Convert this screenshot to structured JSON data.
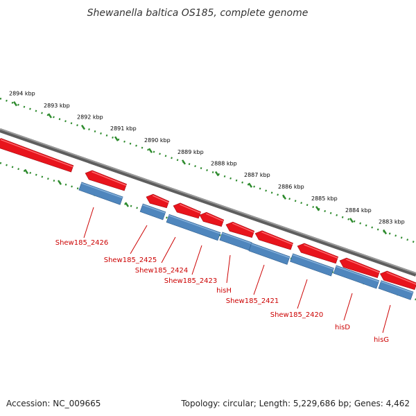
{
  "title": "Shewanella baltica OS185, complete genome",
  "footer": {
    "accession": "Accession: NC_009665",
    "topology": "Topology: circular; Length: 5,229,686 bp; Genes: 4,462"
  },
  "colors": {
    "backbone": "#808080",
    "forward_gene": "#e8141c",
    "reverse_gene": "#4f86bd",
    "ruler": "#2e8b2e",
    "label": "#cc0000"
  },
  "scale_labels": [
    "2894 kbp",
    "2893 kbp",
    "2892 kbp",
    "2891 kbp",
    "2890 kbp",
    "2889 kbp",
    "2888 kbp",
    "2887 kbp",
    "2886 kbp",
    "2885 kbp",
    "2884 kbp",
    "2883 kbp"
  ],
  "gene_labels": [
    "Shew185_2426",
    "Shew185_2425",
    "Shew185_2424",
    "Shew185_2423",
    "hisH",
    "Shew185_2421",
    "Shew185_2420",
    "hisD",
    "hisG"
  ]
}
